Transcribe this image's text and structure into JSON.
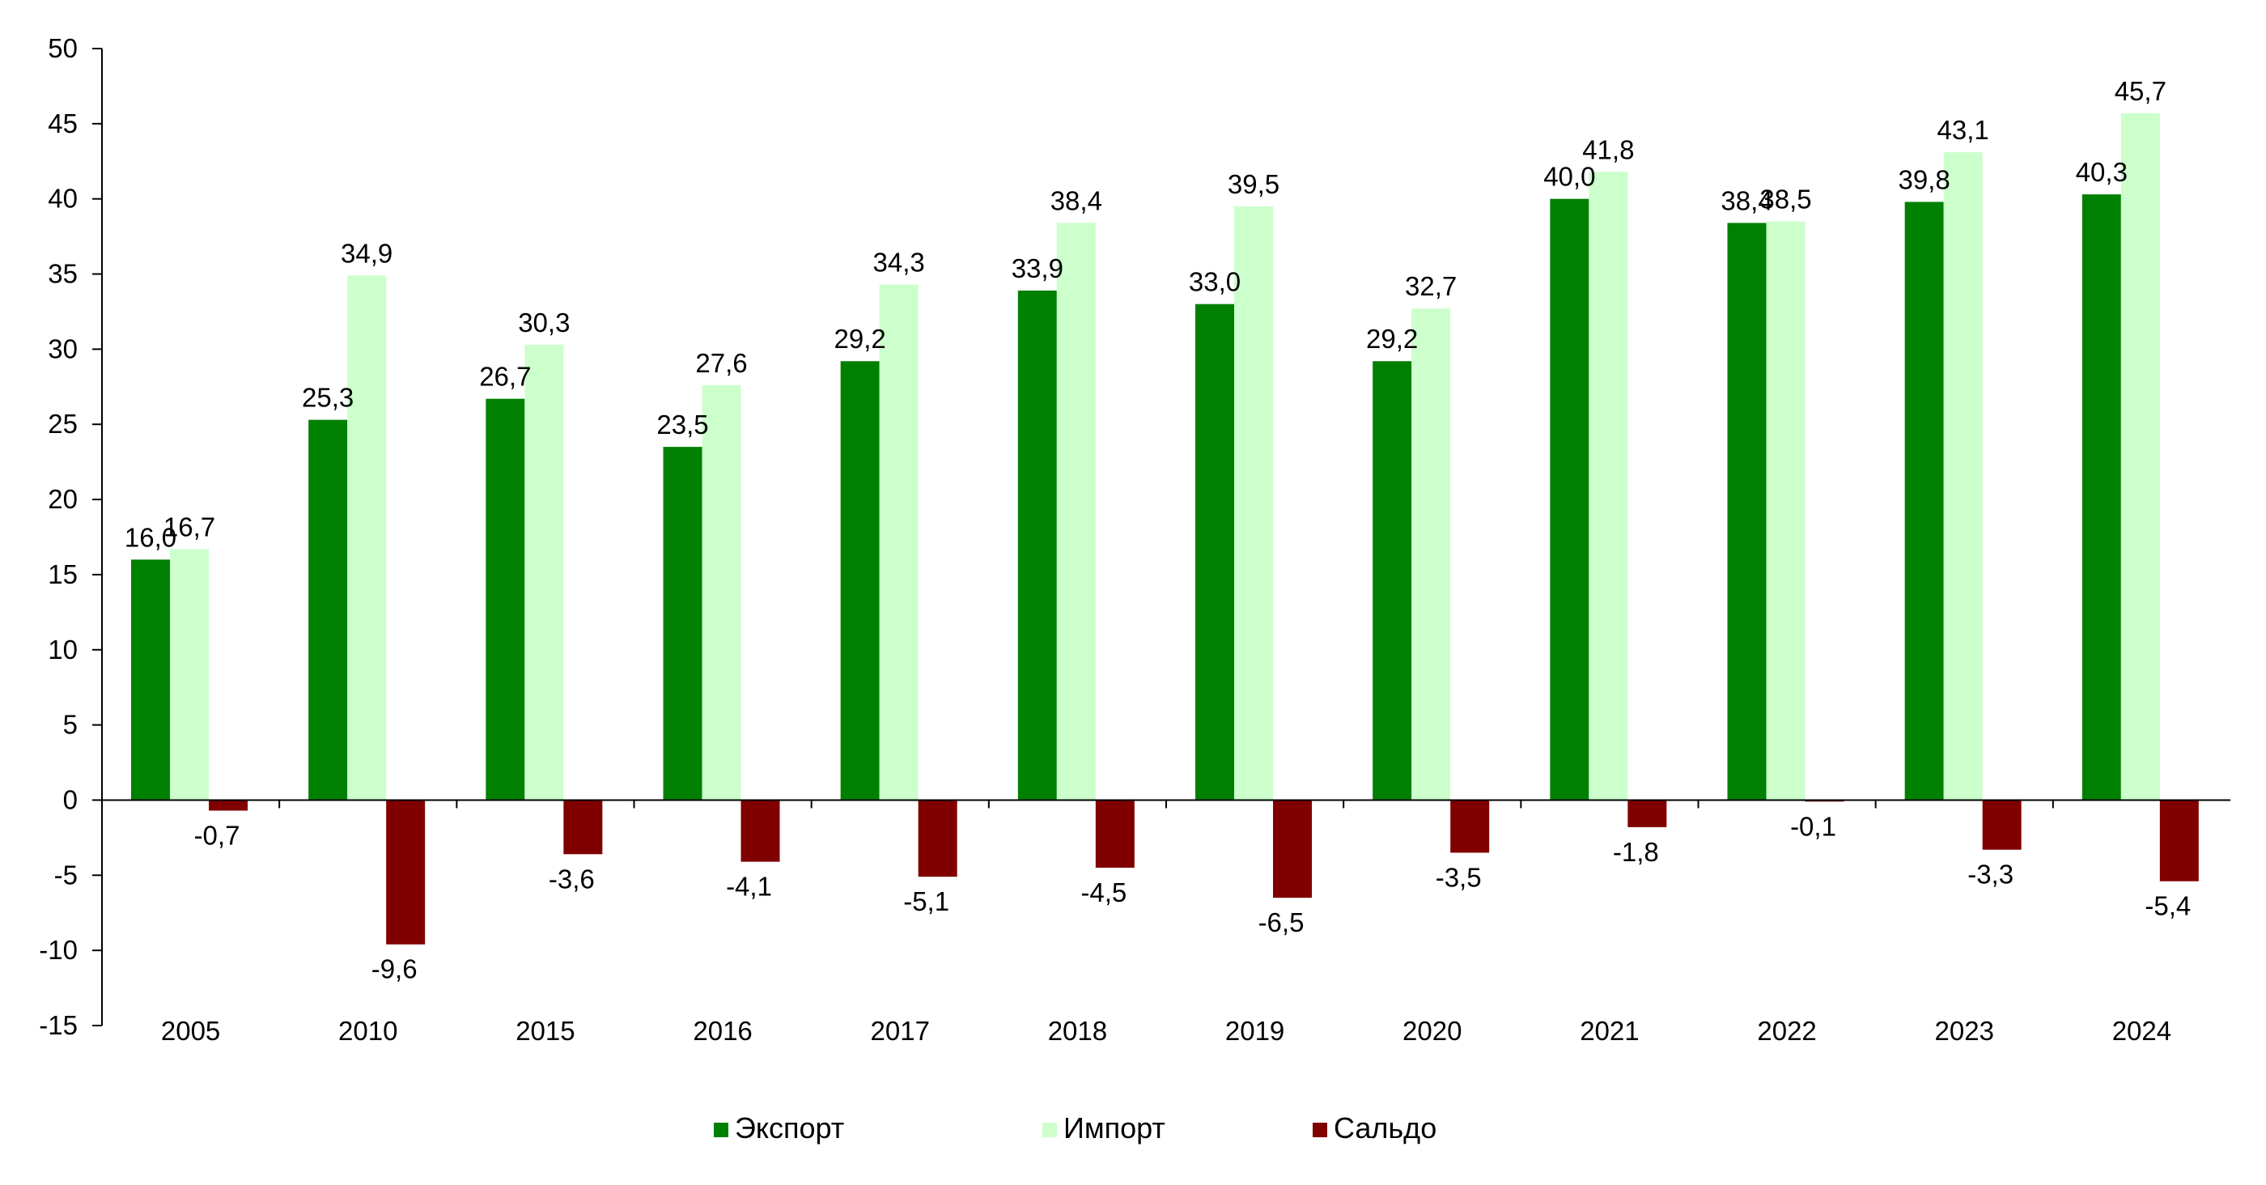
{
  "chart_data": {
    "type": "bar",
    "categories": [
      "2005",
      "2010",
      "2015",
      "2016",
      "2017",
      "2018",
      "2019",
      "2020",
      "2021",
      "2022",
      "2023",
      "2024"
    ],
    "series": [
      {
        "name": "Экспорт",
        "color": "#008000",
        "values": [
          16.0,
          25.3,
          26.7,
          23.5,
          29.2,
          33.9,
          33.0,
          29.2,
          40.0,
          38.4,
          39.8,
          40.3
        ],
        "labels": [
          "16,0",
          "25,3",
          "26,7",
          "23,5",
          "29,2",
          "33,9",
          "33,0",
          "29,2",
          "40,0",
          "38,4",
          "39,8",
          "40,3"
        ]
      },
      {
        "name": "Импорт",
        "color": "#CCFFCC",
        "values": [
          16.7,
          34.9,
          30.3,
          27.6,
          34.3,
          38.4,
          39.5,
          32.7,
          41.8,
          38.5,
          43.1,
          45.7
        ],
        "labels": [
          "16,7",
          "34,9",
          "30,3",
          "27,6",
          "34,3",
          "38,4",
          "39,5",
          "32,7",
          "41,8",
          "38,5",
          "43,1",
          "45,7"
        ]
      },
      {
        "name": "Сальдо",
        "color": "#800000",
        "values": [
          -0.7,
          -9.6,
          -3.6,
          -4.1,
          -5.1,
          -4.5,
          -6.5,
          -3.5,
          -1.8,
          -0.1,
          -3.3,
          -5.4
        ],
        "labels": [
          "-0,7",
          "-9,6",
          "-3,6",
          "-4,1",
          "-5,1",
          "-4,5",
          "-6,5",
          "-3,5",
          "-1,8",
          "-0,1",
          "-3,3",
          "-5,4"
        ]
      }
    ],
    "ylim": [
      -15,
      50
    ],
    "yticks": [
      50,
      45,
      40,
      35,
      30,
      25,
      20,
      15,
      10,
      5,
      0,
      -5,
      -10,
      -15
    ],
    "grid": false,
    "legend_position": "bottom",
    "title": "",
    "xlabel": "",
    "ylabel": ""
  }
}
